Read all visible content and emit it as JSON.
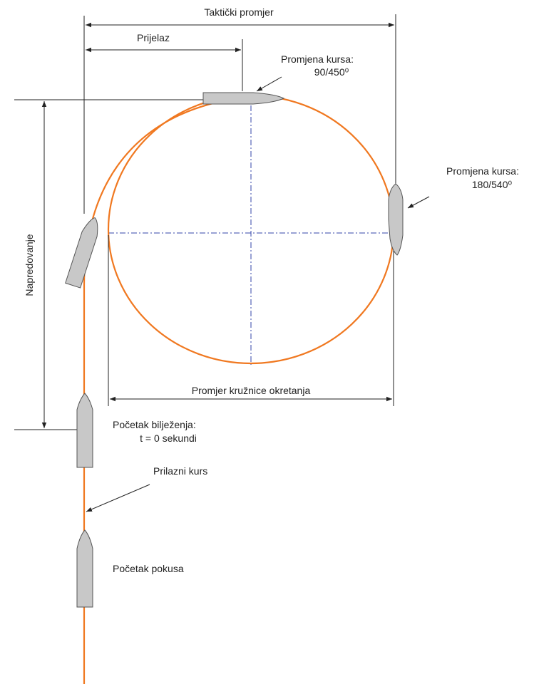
{
  "labels": {
    "tactical_diameter": "Taktički promjer",
    "transfer": "Prijelaz",
    "course_change_90": {
      "title": "Promjena kursa:",
      "value": "90/450⁰"
    },
    "course_change_180": {
      "title": "Promjena kursa:",
      "value": "180/540⁰"
    },
    "advance": "Napredovanje",
    "turning_diameter": "Promjer kružnice okretanja",
    "recording_start": {
      "title": "Početak bilježenja:",
      "value": "t = 0 sekundi"
    },
    "approach_course": "Prilazni kurs",
    "trial_start": "Početak pokusa"
  }
}
